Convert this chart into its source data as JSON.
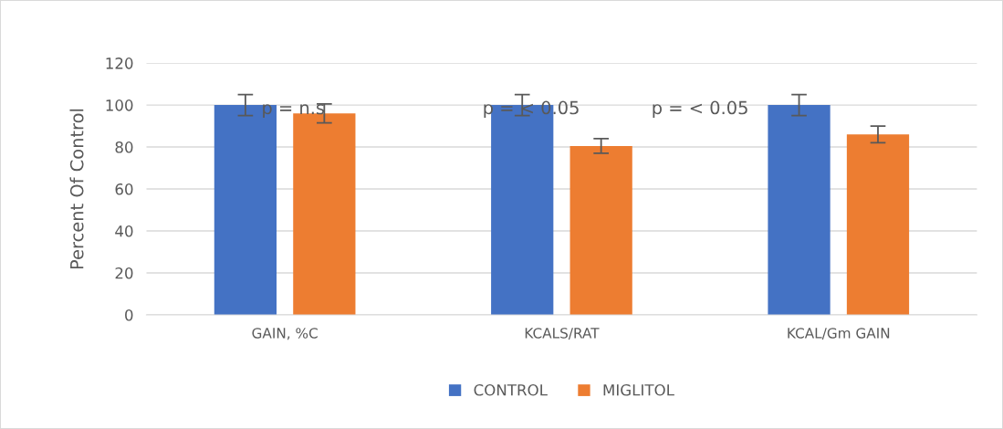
{
  "chart_data": {
    "type": "bar",
    "ylabel": "Percent Of Control",
    "categories": [
      "GAIN, %C",
      "KCALS/RAT",
      "KCAL/Gm GAIN"
    ],
    "series": [
      {
        "name": "CONTROL",
        "color": "#4472c4",
        "values": [
          100,
          100,
          100
        ],
        "errors": [
          5,
          5,
          5
        ]
      },
      {
        "name": "MIGLITOL",
        "color": "#ed7d31",
        "values": [
          96,
          80.5,
          86
        ],
        "errors": [
          4.5,
          3.5,
          4
        ]
      }
    ],
    "annotations": [
      "p = n.s",
      "p = < 0.05",
      "p = < 0.05"
    ],
    "ylim": [
      0,
      120
    ],
    "yticks": [
      0,
      20,
      40,
      60,
      80,
      100,
      120
    ],
    "grid": "y",
    "legend": "bottom"
  }
}
